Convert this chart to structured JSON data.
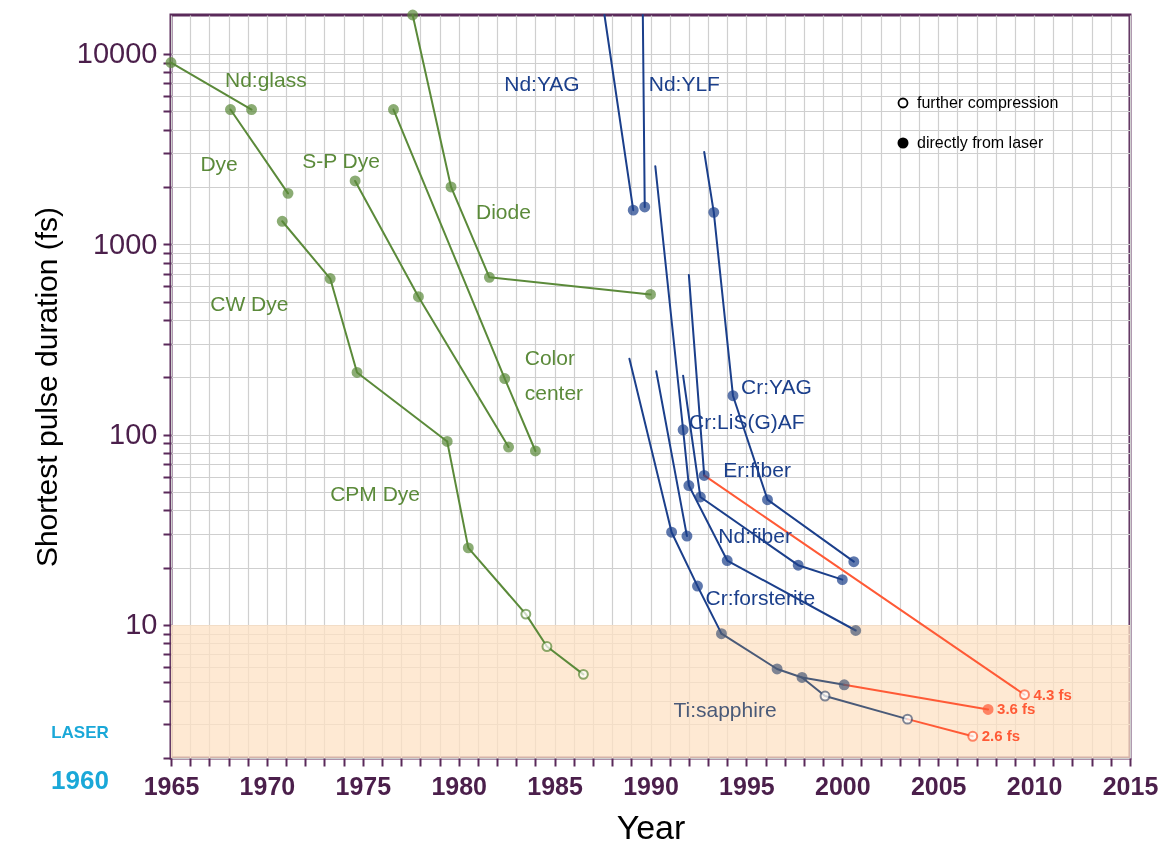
{
  "chart_data": {
    "type": "line",
    "xlabel": "Year",
    "ylabel": "Shortest pulse duration (fs)",
    "log": "y",
    "grid": true,
    "xlim": [
      1965,
      2015
    ],
    "ylim": [
      2,
      16000
    ],
    "xticks": [
      1965,
      {
        "value": 1966,
        "label": null
      },
      {
        "value": 1967,
        "label": null
      },
      {
        "value": 1968,
        "label": null
      },
      {
        "value": 1969,
        "label": null
      },
      1970,
      {
        "value": 1971,
        "label": null
      },
      {
        "value": 1972,
        "label": null
      },
      {
        "value": 1973,
        "label": null
      },
      {
        "value": 1974,
        "label": null
      },
      1975,
      {
        "value": 1976,
        "label": null
      },
      {
        "value": 1977,
        "label": null
      },
      {
        "value": 1978,
        "label": null
      },
      {
        "value": 1979,
        "label": null
      },
      1980,
      {
        "value": 1981,
        "label": null
      },
      {
        "value": 1982,
        "label": null
      },
      {
        "value": 1983,
        "label": null
      },
      {
        "value": 1984,
        "label": null
      },
      1985,
      {
        "value": 1986,
        "label": null
      },
      {
        "value": 1987,
        "label": null
      },
      {
        "value": 1988,
        "label": null
      },
      {
        "value": 1989,
        "label": null
      },
      1990,
      {
        "value": 1991,
        "label": null
      },
      {
        "value": 1992,
        "label": null
      },
      {
        "value": 1993,
        "label": null
      },
      {
        "value": 1994,
        "label": null
      },
      1995,
      {
        "value": 1996,
        "label": null
      },
      {
        "value": 1997,
        "label": null
      },
      {
        "value": 1998,
        "label": null
      },
      {
        "value": 1999,
        "label": null
      },
      2000,
      {
        "value": 2001,
        "label": null
      },
      {
        "value": 2002,
        "label": null
      },
      {
        "value": 2003,
        "label": null
      },
      {
        "value": 2004,
        "label": null
      },
      2005,
      {
        "value": 2006,
        "label": null
      },
      {
        "value": 2007,
        "label": null
      },
      {
        "value": 2008,
        "label": null
      },
      {
        "value": 2009,
        "label": null
      },
      2010,
      {
        "value": 2011,
        "label": null
      },
      {
        "value": 2012,
        "label": null
      },
      {
        "value": 2013,
        "label": null
      },
      {
        "value": 2014,
        "label": null
      },
      2015
    ],
    "yticks": [
      {
        "value": 2,
        "label": null
      },
      {
        "value": 3,
        "label": null
      },
      {
        "value": 4,
        "label": null
      },
      {
        "value": 5,
        "label": null
      },
      {
        "value": 6,
        "label": null
      },
      {
        "value": 7,
        "label": null
      },
      {
        "value": 8,
        "label": null
      },
      {
        "value": 9,
        "label": null
      },
      10,
      {
        "value": 20,
        "label": null
      },
      {
        "value": 30,
        "label": null
      },
      {
        "value": 40,
        "label": null
      },
      {
        "value": 50,
        "label": null
      },
      {
        "value": 60,
        "label": null
      },
      {
        "value": 70,
        "label": null
      },
      {
        "value": 80,
        "label": null
      },
      {
        "value": 90,
        "label": null
      },
      100,
      {
        "value": 200,
        "label": null
      },
      {
        "value": 300,
        "label": null
      },
      {
        "value": 400,
        "label": null
      },
      {
        "value": 500,
        "label": null
      },
      {
        "value": 600,
        "label": null
      },
      {
        "value": 700,
        "label": null
      },
      {
        "value": 800,
        "label": null
      },
      {
        "value": 900,
        "label": null
      },
      1000,
      {
        "value": 2000,
        "label": null
      },
      {
        "value": 3000,
        "label": null
      },
      {
        "value": 4000,
        "label": null
      },
      {
        "value": 5000,
        "label": null
      },
      {
        "value": 6000,
        "label": null
      },
      {
        "value": 7000,
        "label": null
      },
      {
        "value": 8000,
        "label": null
      },
      {
        "value": 9000,
        "label": null
      },
      10000
    ],
    "bands": [
      {
        "axis": "y",
        "from": 2,
        "to": 10,
        "color": "#fde2c4"
      }
    ],
    "series": [
      {
        "name": "Nd:glass",
        "marker": "none",
        "color": "#5b8a3a",
        "x": [
          1965,
          1969.2
        ],
        "values": [
          9000,
          5100
        ]
      },
      {
        "name": "Dye",
        "marker": "none",
        "color": "#5b8a3a",
        "x": [
          1968.1,
          1971.1
        ],
        "values": [
          5100,
          1850
        ]
      },
      {
        "name": "CW Dye",
        "marker": "none",
        "color": "#5b8a3a",
        "x": [
          1970.8,
          1973.3,
          1974.7,
          1979.4
        ],
        "values": [
          1320,
          660,
          212,
          92
        ]
      },
      {
        "name": "CPM Dye",
        "marker": "none",
        "color": "#5b8a3a",
        "x": [
          1979.4,
          1980.5,
          1983.5,
          1984.6,
          1986.5
        ],
        "values": [
          92,
          25.4,
          11.4,
          7.7,
          5.5
        ]
      },
      {
        "name": "S-P Dye",
        "marker": "none",
        "color": "#5b8a3a",
        "x": [
          1974.6,
          1977.9,
          1982.6
        ],
        "values": [
          2150,
          530,
          86
        ]
      },
      {
        "name": "Color center",
        "marker": "none",
        "color": "#5b8a3a",
        "x": [
          1976.6,
          1982.4,
          1984.0
        ],
        "values": [
          5100,
          197,
          82
        ]
      },
      {
        "name": "Diode",
        "marker": "none",
        "color": "#5b8a3a",
        "x": [
          1977.6,
          1979.6,
          1981.6,
          1990.0
        ],
        "values": [
          16000,
          2000,
          670,
          545
        ]
      },
      {
        "name": "Nd:YAG",
        "marker": "none",
        "color": "#1b3f8b",
        "x": [
          1987.6,
          1989.1
        ],
        "values": [
          16000,
          1510
        ]
      },
      {
        "name": "Nd:YLF",
        "marker": "none",
        "color": "#1b3f8b",
        "x": [
          1989.6,
          1989.7
        ],
        "values": [
          16000,
          1570
        ]
      },
      {
        "name": "Cr:YAG",
        "marker": "none",
        "color": "#1b3f8b",
        "x": [
          1992.8,
          1993.3,
          1994.3,
          1996.1,
          2000.6
        ],
        "values": [
          3050,
          1470,
          160,
          45.5,
          21.5
        ]
      },
      {
        "name": "Cr:forsterite",
        "marker": "none",
        "color": "#1b3f8b",
        "x": [
          1988.9,
          1991.1,
          1992.45,
          1993.7
        ],
        "values": [
          250,
          30.7,
          16,
          9.0
        ]
      },
      {
        "marker": "none",
        "color": "#1b3f8b",
        "x": [
          1990.3,
          1991.9
        ],
        "values": [
          215,
          29.3
        ]
      },
      {
        "name": "Cr:LiS(G)AF",
        "marker": "none",
        "color": "#1b3f8b",
        "x": [
          1990.25,
          1991.7,
          1992.0,
          1994.0,
          2000.7
        ],
        "values": [
          2570,
          106,
          54,
          21.8,
          9.35
        ]
      },
      {
        "name": "Nd:fiber",
        "marker": "none",
        "color": "#1b3f8b",
        "x": [
          1991.7,
          1992.6,
          1997.7,
          2000.0
        ],
        "values": [
          204,
          47,
          20.6,
          17.3
        ]
      },
      {
        "name": "Er:fiber",
        "marker": "none",
        "color": "#1b3f8b",
        "x": [
          1992.0,
          1992.8
        ],
        "values": [
          690,
          61
        ]
      },
      {
        "name": "Ti:sapphire",
        "marker": "none",
        "color": "#4a5a78",
        "x": [
          1993.7,
          1996.6,
          1997.9,
          2000.1
        ],
        "values": [
          9.0,
          5.87,
          5.3,
          4.85
        ]
      },
      {
        "marker": "none",
        "color": "#4a5a78",
        "x": [
          1997.9,
          1999.1,
          2003.4
        ],
        "values": [
          5.3,
          4.23,
          3.2
        ]
      },
      {
        "marker": "none",
        "color": "#ff5a36",
        "x": [
          1992.8,
          2009.5
        ],
        "values": [
          61,
          4.3
        ],
        "value_labels": [
          null,
          "4.3 fs"
        ]
      },
      {
        "marker": "none",
        "color": "#ff5a36",
        "x": [
          2000.1,
          2007.6
        ],
        "values": [
          4.85,
          3.6
        ],
        "value_labels": [
          null,
          "3.6 fs"
        ]
      },
      {
        "marker": "none",
        "color": "#ff5a36",
        "x": [
          2003.4,
          2006.8
        ],
        "values": [
          3.2,
          2.6
        ],
        "value_labels": [
          null,
          "2.6 fs"
        ]
      },
      {
        "type": "scatter",
        "marker": "circle",
        "color": "#ffffff",
        "x": [
          1983.5,
          1984.6,
          1986.5,
          1999.1,
          2003.4,
          2009.5,
          2006.8
        ],
        "values": [
          11.4,
          7.7,
          5.5,
          4.23,
          3.2,
          4.3,
          2.6
        ],
        "colors": [
          "#5b8a3a",
          "#5b8a3a",
          "#5b8a3a",
          "#4a5a78",
          "#4a5a78",
          "#ff5a36",
          "#ff5a36"
        ]
      },
      {
        "type": "scatter",
        "marker": "circle",
        "x": [
          1965,
          1969.2,
          1968.1,
          1971.1,
          1970.8,
          1973.3,
          1974.7,
          1979.4,
          1980.5,
          1974.6,
          1977.9,
          1982.6,
          1976.6,
          1982.4,
          1984.0,
          1977.6,
          1979.6,
          1981.6,
          1990.0,
          1989.1,
          1989.7,
          1993.3,
          1994.3,
          1996.1,
          2000.6,
          1991.1,
          1991.9,
          1991.7,
          1992.0,
          1992.8,
          1992.6,
          1994.0,
          1992.45,
          1997.7,
          2000.0,
          1993.7,
          1996.6,
          1997.9,
          2000.1,
          2000.7,
          2007.6
        ],
        "values": [
          9000,
          5100,
          5100,
          1850,
          1320,
          660,
          212,
          92,
          25.4,
          2150,
          530,
          86,
          5100,
          197,
          82,
          16000,
          2000,
          670,
          545,
          1510,
          1570,
          1470,
          160,
          45.5,
          21.5,
          30.7,
          29.3,
          106,
          54,
          61,
          47,
          21.8,
          16,
          20.6,
          17.3,
          9.0,
          5.87,
          5.3,
          4.85,
          9.35,
          3.6
        ],
        "colors": [
          "#5b8a3a",
          "#5b8a3a",
          "#5b8a3a",
          "#5b8a3a",
          "#5b8a3a",
          "#5b8a3a",
          "#5b8a3a",
          "#5b8a3a",
          "#5b8a3a",
          "#5b8a3a",
          "#5b8a3a",
          "#5b8a3a",
          "#5b8a3a",
          "#5b8a3a",
          "#5b8a3a",
          "#5b8a3a",
          "#5b8a3a",
          "#5b8a3a",
          "#5b8a3a",
          "#1b3f8b",
          "#1b3f8b",
          "#1b3f8b",
          "#1b3f8b",
          "#1b3f8b",
          "#1b3f8b",
          "#1b3f8b",
          "#1b3f8b",
          "#1b3f8b",
          "#1b3f8b",
          "#1b3f8b",
          "#1b3f8b",
          "#1b3f8b",
          "#1b3f8b",
          "#1b3f8b",
          "#1b3f8b",
          "#4a5a78",
          "#4a5a78",
          "#4a5a78",
          "#4a5a78",
          "#4a5a78",
          "#ff5a36"
        ]
      }
    ],
    "annotations": [
      "further compression",
      "directly from laser",
      "LASER",
      "1960"
    ]
  }
}
